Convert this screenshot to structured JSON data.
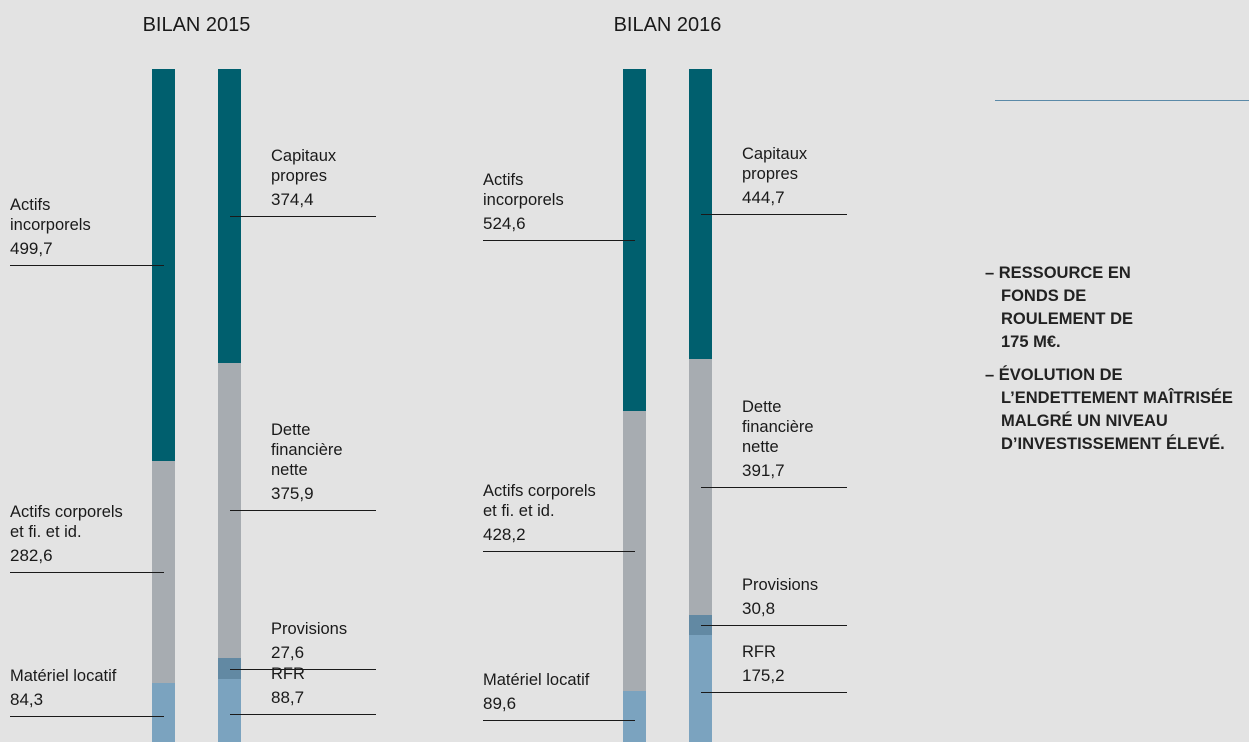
{
  "chart_data": [
    {
      "type": "stacked_bar",
      "title": "BILAN 2015",
      "stacks": [
        [
          {
            "name": "Actifs incorporels",
            "value": 499.7,
            "value_label": "499,7",
            "color": "#005f6e"
          },
          {
            "name": "Actifs corporels et fi. et id.",
            "value": 282.6,
            "value_label": "282,6",
            "color": "#a7acb1"
          },
          {
            "name": "Matériel locatif",
            "value": 84.3,
            "value_label": "84,3",
            "color": "#7ba3bf"
          }
        ],
        [
          {
            "name": "Capitaux propres",
            "value": 374.4,
            "value_label": "374,4",
            "color": "#005f6e"
          },
          {
            "name": "Dette financière nette",
            "value": 375.9,
            "value_label": "375,9",
            "color": "#a7acb1"
          },
          {
            "name": "Provisions",
            "value": 27.6,
            "value_label": "27,6",
            "color": "#6289a3"
          },
          {
            "name": "RFR",
            "value": 88.7,
            "value_label": "88,7",
            "color": "#7ba3bf"
          }
        ]
      ]
    },
    {
      "type": "stacked_bar",
      "title": "BILAN 2016",
      "stacks": [
        [
          {
            "name": "Actifs incorporels",
            "value": 524.6,
            "value_label": "524,6",
            "color": "#005f6e"
          },
          {
            "name": "Actifs corporels et fi. et id.",
            "value": 428.2,
            "value_label": "428,2",
            "color": "#a7acb1"
          },
          {
            "name": "Matériel locatif",
            "value": 89.6,
            "value_label": "89,6",
            "color": "#7ba3bf"
          }
        ],
        [
          {
            "name": "Capitaux propres",
            "value": 444.7,
            "value_label": "444,7",
            "color": "#005f6e"
          },
          {
            "name": "Dette financière nette",
            "value": 391.7,
            "value_label": "391,7",
            "color": "#a7acb1"
          },
          {
            "name": "Provisions",
            "value": 30.8,
            "value_label": "30,8",
            "color": "#6289a3"
          },
          {
            "name": "RFR",
            "value": 175.2,
            "value_label": "175,2",
            "color": "#7ba3bf"
          }
        ]
      ]
    }
  ],
  "notes": [
    "– RESSOURCE EN FONDS DE ROULEMENT DE 175 M€.",
    "– ÉVOLUTION DE L’ENDETTEMENT MAÎTRISÉE MALGRÉ UN NIVEAU D’INVESTISSEMENT ÉLEVÉ."
  ]
}
